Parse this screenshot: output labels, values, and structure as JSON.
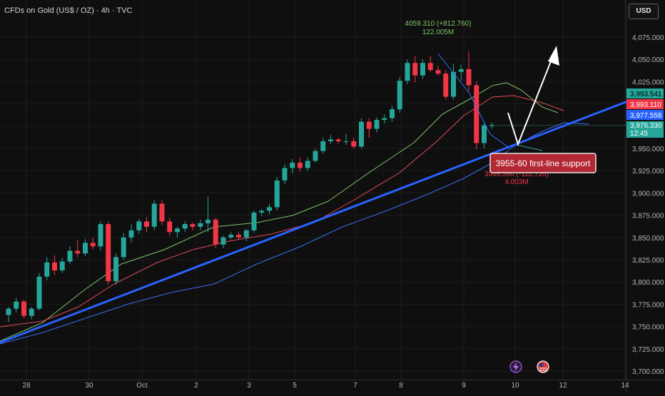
{
  "header": {
    "symbol_title": "CFDs on Gold (US$ / OZ) · 4h · TVC",
    "currency_button": "USD"
  },
  "colors": {
    "background": "#0f0f0f",
    "up_candle": "#26a69a",
    "down_candle": "#f23645",
    "trendline": "#2962ff",
    "ma_green": "#7ec36b",
    "ma_red": "#e34a59",
    "ma_blue": "#3a6df0",
    "annotation_bg": "#b22833"
  },
  "annotations": {
    "high_price": "4059.310 (+812.760)",
    "high_volume": "122.005M",
    "low_price": "3946.590 (-112.720)",
    "low_volume": "4.003M",
    "support_label": "3955-60 first-line support"
  },
  "price_badges": [
    {
      "text": "3,993.541",
      "color": "#26a69a",
      "text_color": "#000000"
    },
    {
      "text": "3,993.110",
      "color": "#f23645",
      "text_color": "#ffffff"
    },
    {
      "text": "3,977.558",
      "color": "#2962ff",
      "text_color": "#ffffff"
    },
    {
      "text": "3,976.330",
      "color": "#26a69a",
      "text_color": "#ffffff"
    },
    {
      "text": "12:45",
      "color": "#26a69a",
      "text_color": "#ffffff"
    }
  ],
  "bottom_icons": [
    "lightning-event-icon",
    "us-flag-event-icon"
  ],
  "chart_data": {
    "type": "candlestick",
    "title": "CFDs on Gold (US$ / OZ) · 4h · TVC",
    "x_tick_labels": [
      "28",
      "30",
      "Oct",
      "2",
      "3",
      "5",
      "7",
      "8",
      "9",
      "10",
      "12",
      "14"
    ],
    "y_tick_labels": [
      "4,075.000",
      "4,050.000",
      "4,025.000",
      "4,000.000",
      "3,975.000",
      "3,950.000",
      "3,925.000",
      "3,900.000",
      "3,875.000",
      "3,850.000",
      "3,825.000",
      "3,800.000",
      "3,775.000",
      "3,750.000",
      "3,725.000",
      "3,700.000"
    ],
    "ylim": [
      3700,
      4075
    ],
    "candles": [
      [
        3763,
        3772,
        3755,
        3770
      ],
      [
        3770,
        3782,
        3766,
        3778
      ],
      [
        3778,
        3780,
        3759,
        3762
      ],
      [
        3762,
        3772,
        3758,
        3770
      ],
      [
        3770,
        3810,
        3768,
        3806
      ],
      [
        3806,
        3828,
        3802,
        3822
      ],
      [
        3822,
        3830,
        3808,
        3813
      ],
      [
        3813,
        3827,
        3810,
        3823
      ],
      [
        3823,
        3840,
        3820,
        3835
      ],
      [
        3835,
        3847,
        3828,
        3832
      ],
      [
        3832,
        3848,
        3829,
        3844
      ],
      [
        3844,
        3850,
        3837,
        3840
      ],
      [
        3840,
        3868,
        3835,
        3865
      ],
      [
        3865,
        3868,
        3797,
        3801
      ],
      [
        3801,
        3832,
        3797,
        3828
      ],
      [
        3828,
        3855,
        3825,
        3850
      ],
      [
        3850,
        3865,
        3844,
        3858
      ],
      [
        3858,
        3871,
        3854,
        3868
      ],
      [
        3868,
        3873,
        3856,
        3862
      ],
      [
        3862,
        3892,
        3858,
        3888
      ],
      [
        3888,
        3892,
        3864,
        3868
      ],
      [
        3868,
        3872,
        3852,
        3856
      ],
      [
        3856,
        3862,
        3850,
        3860
      ],
      [
        3860,
        3868,
        3856,
        3865
      ],
      [
        3865,
        3867,
        3858,
        3862
      ],
      [
        3862,
        3870,
        3858,
        3866
      ],
      [
        3866,
        3896,
        3856,
        3870
      ],
      [
        3870,
        3872,
        3838,
        3842
      ],
      [
        3842,
        3852,
        3838,
        3850
      ],
      [
        3850,
        3856,
        3848,
        3853
      ],
      [
        3853,
        3856,
        3848,
        3850
      ],
      [
        3850,
        3860,
        3846,
        3858
      ],
      [
        3858,
        3880,
        3855,
        3878
      ],
      [
        3878,
        3882,
        3874,
        3880
      ],
      [
        3880,
        3888,
        3876,
        3884
      ],
      [
        3884,
        3918,
        3880,
        3914
      ],
      [
        3914,
        3932,
        3910,
        3928
      ],
      [
        3928,
        3938,
        3922,
        3934
      ],
      [
        3934,
        3940,
        3924,
        3928
      ],
      [
        3928,
        3940,
        3925,
        3936
      ],
      [
        3936,
        3950,
        3934,
        3947
      ],
      [
        3947,
        3962,
        3944,
        3958
      ],
      [
        3958,
        3965,
        3955,
        3960
      ],
      [
        3960,
        3962,
        3955,
        3958
      ],
      [
        3958,
        3966,
        3954,
        3958
      ],
      [
        3958,
        3962,
        3950,
        3952
      ],
      [
        3952,
        3984,
        3950,
        3980
      ],
      [
        3980,
        3984,
        3962,
        3972
      ],
      [
        3972,
        3985,
        3968,
        3982
      ],
      [
        3982,
        3988,
        3978,
        3984
      ],
      [
        3984,
        3998,
        3980,
        3994
      ],
      [
        3994,
        4030,
        3990,
        4026
      ],
      [
        4026,
        4050,
        4022,
        4046
      ],
      [
        4046,
        4054,
        4024,
        4032
      ],
      [
        4032,
        4050,
        4028,
        4046
      ],
      [
        4046,
        4054,
        4036,
        4038
      ],
      [
        4038,
        4043,
        4032,
        4034
      ],
      [
        4034,
        4038,
        4005,
        4008
      ],
      [
        4008,
        4045,
        4005,
        4036
      ],
      [
        4036,
        4044,
        4026,
        4039
      ],
      [
        4039,
        4059,
        4014,
        4021
      ],
      [
        4021,
        4025,
        3949,
        3956
      ],
      [
        3956,
        3978,
        3950,
        3976
      ],
      [
        3976,
        3979,
        3972,
        3976
      ]
    ]
  }
}
